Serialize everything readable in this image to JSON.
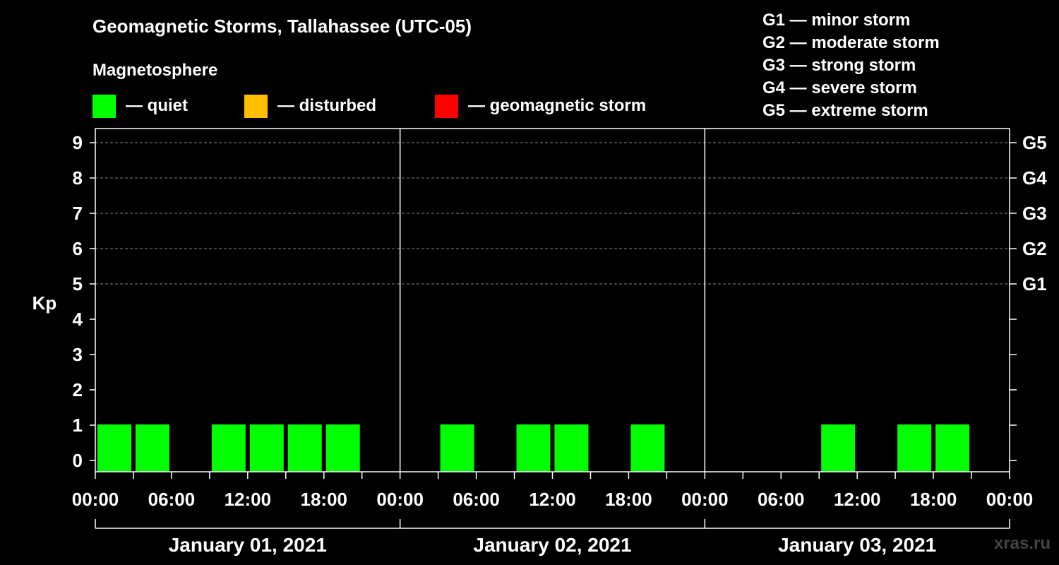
{
  "title": "Geomagnetic Storms, Tallahassee (UTC-05)",
  "magnetosphere_title": "Magnetosphere",
  "legend": [
    {
      "color": "#00ff00",
      "label": "— quiet"
    },
    {
      "color": "#ffbf00",
      "label": "— disturbed"
    },
    {
      "color": "#ff0000",
      "label": "— geomagnetic storm"
    }
  ],
  "storm_levels": [
    "G1 — minor storm",
    "G2 — moderate storm",
    "G3 — strong storm",
    "G4 — severe storm",
    "G5 — extreme storm"
  ],
  "watermark": "xras.ru",
  "chart_data": {
    "type": "bar",
    "ylabel": "Kp",
    "ylim": [
      0,
      9
    ],
    "yticks": [
      "0",
      "1",
      "2",
      "3",
      "4",
      "5",
      "6",
      "7",
      "8",
      "9"
    ],
    "right_ticks": [
      {
        "value": 5,
        "label": "G1"
      },
      {
        "value": 6,
        "label": "G2"
      },
      {
        "value": 7,
        "label": "G3"
      },
      {
        "value": 8,
        "label": "G4"
      },
      {
        "value": 9,
        "label": "G5"
      }
    ],
    "days": [
      "January 01, 2021",
      "January 02, 2021",
      "January 03, 2021"
    ],
    "time_ticks": [
      "00:00",
      "06:00",
      "12:00",
      "18:00",
      "00:00",
      "06:00",
      "12:00",
      "18:00",
      "00:00",
      "06:00",
      "12:00",
      "18:00",
      "00:00"
    ],
    "interval_hours": 3,
    "grid": "dashed at 5, 6, 7, 8, 9",
    "colors": {
      "quiet": "#00ff00",
      "disturbed": "#ffbf00",
      "storm": "#ff0000"
    },
    "values": [
      [
        1,
        1,
        0,
        1,
        1,
        1,
        1,
        0
      ],
      [
        0,
        1,
        0,
        1,
        1,
        0,
        1,
        0
      ],
      [
        0,
        0,
        0,
        1,
        0,
        1,
        1,
        0
      ]
    ]
  }
}
